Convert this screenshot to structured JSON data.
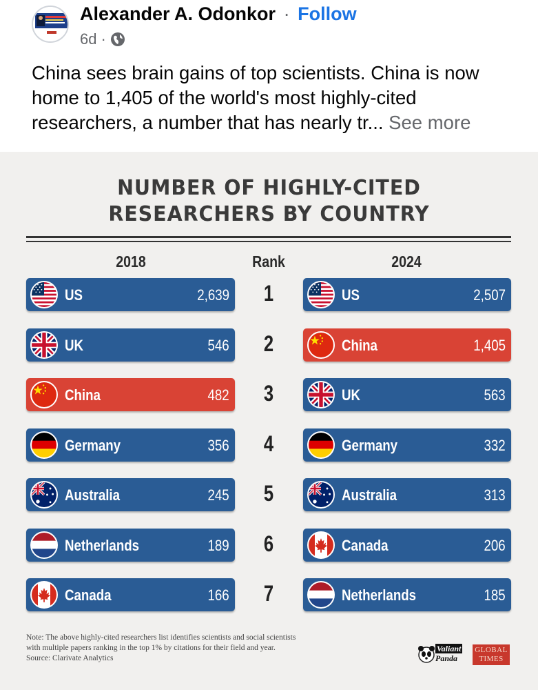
{
  "post": {
    "author": "Alexander A. Odonkor",
    "separator": "·",
    "follow": "Follow",
    "time": "6d",
    "meta_dot": "·",
    "text": "China sees brain gains of top scientists. China is now home to 1,405 of the world's most highly-cited researchers, a number that has nearly tr...",
    "see_more": "See more",
    "icons": {
      "privacy": "globe-icon",
      "avatar": "profile-photo"
    }
  },
  "infographic": {
    "title_line1": "NUMBER OF HIGHLY-CITED",
    "title_line2": "RESEARCHERS BY COUNTRY",
    "headers": {
      "left": "2018",
      "middle": "Rank",
      "right": "2024"
    },
    "colors": {
      "blue_bar": "#2a5c95",
      "red_bar": "#d94335",
      "background": "#f1f0ee"
    },
    "ranks": [
      "1",
      "2",
      "3",
      "4",
      "5",
      "6",
      "7"
    ],
    "left": [
      {
        "country": "US",
        "value": "2,639",
        "flag": "us-flag-icon"
      },
      {
        "country": "UK",
        "value": "546",
        "flag": "uk-flag-icon"
      },
      {
        "country": "China",
        "value": "482",
        "flag": "china-flag-icon"
      },
      {
        "country": "Germany",
        "value": "356",
        "flag": "germany-flag-icon"
      },
      {
        "country": "Australia",
        "value": "245",
        "flag": "australia-flag-icon"
      },
      {
        "country": "Netherlands",
        "value": "189",
        "flag": "netherlands-flag-icon"
      },
      {
        "country": "Canada",
        "value": "166",
        "flag": "canada-flag-icon"
      }
    ],
    "right": [
      {
        "country": "US",
        "value": "2,507",
        "flag": "us-flag-icon"
      },
      {
        "country": "China",
        "value": "1,405",
        "flag": "china-flag-icon"
      },
      {
        "country": "UK",
        "value": "563",
        "flag": "uk-flag-icon"
      },
      {
        "country": "Germany",
        "value": "332",
        "flag": "germany-flag-icon"
      },
      {
        "country": "Australia",
        "value": "313",
        "flag": "australia-flag-icon"
      },
      {
        "country": "Canada",
        "value": "206",
        "flag": "canada-flag-icon"
      },
      {
        "country": "Netherlands",
        "value": "185",
        "flag": "netherlands-flag-icon"
      }
    ],
    "note_line1": "Note: The above highly-cited researchers list identifies scientists and social scientists",
    "note_line2": "with multiple papers ranking in the top 1% by citations for their field and year.",
    "note_line3": "Source: Clarivate Analytics",
    "logo_valiant": "Valiant",
    "logo_panda": "Panda",
    "logo_global": "GLOBAL",
    "logo_times": "TIMES"
  }
}
